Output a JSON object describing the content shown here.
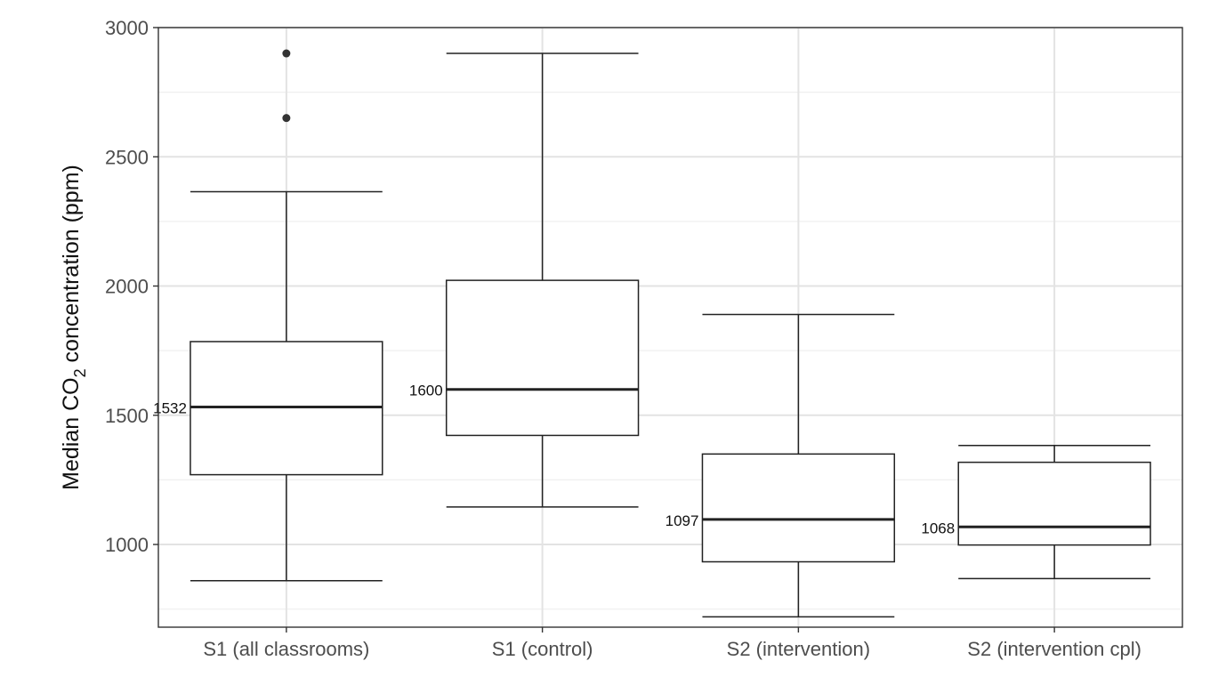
{
  "chart_data": {
    "type": "box",
    "title": "",
    "xlabel": "",
    "ylabel_parts": {
      "pre": "Median CO",
      "sub": "2",
      "post": " concentration (ppm)"
    },
    "ylim": [
      680,
      3000
    ],
    "yticks": [
      1000,
      1500,
      2000,
      2500,
      3000
    ],
    "grid": true,
    "categories": [
      "S1 (all classrooms)",
      "S1 (control)",
      "S2 (intervention)",
      "S2 (intervention cpl)"
    ],
    "boxes": [
      {
        "category": "S1 (all classrooms)",
        "whisker_low": 860,
        "q1": 1270,
        "median": 1532,
        "q3": 1785,
        "whisker_high": 2365,
        "outliers": [
          2650,
          2900
        ],
        "median_label": "1532"
      },
      {
        "category": "S1 (control)",
        "whisker_low": 1145,
        "q1": 1422,
        "median": 1600,
        "q3": 2022,
        "whisker_high": 2900,
        "outliers": [],
        "median_label": "1600"
      },
      {
        "category": "S2 (intervention)",
        "whisker_low": 720,
        "q1": 933,
        "median": 1097,
        "q3": 1350,
        "whisker_high": 1890,
        "outliers": [],
        "median_label": "1097"
      },
      {
        "category": "S2 (intervention cpl)",
        "whisker_low": 868,
        "q1": 998,
        "median": 1068,
        "q3": 1318,
        "whisker_high": 1383,
        "outliers": [],
        "median_label": "1068"
      }
    ]
  }
}
